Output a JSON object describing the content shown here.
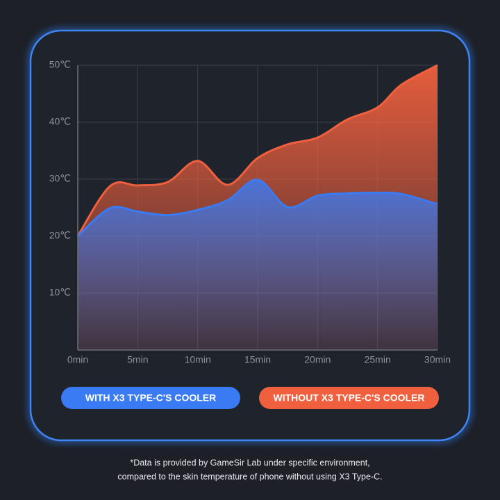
{
  "chart_data": {
    "type": "area",
    "x": [
      0,
      2.7,
      5,
      7.5,
      10,
      12.5,
      15,
      17.5,
      20,
      22.5,
      25,
      27,
      30
    ],
    "series": [
      {
        "name": "WITHOUT X3 TYPE-C'S COOLER",
        "color": "#f0603e",
        "values": [
          20,
          28.8,
          28.9,
          29.5,
          33.2,
          29.0,
          33.7,
          36.1,
          37.3,
          40.5,
          42.6,
          46.6,
          50
        ]
      },
      {
        "name": "WITH X3 TYPE-C'S COOLER",
        "color": "#3a7af2",
        "values": [
          20,
          24.9,
          24.3,
          23.7,
          24.6,
          26.3,
          29.9,
          25.1,
          27.1,
          27.5,
          27.6,
          27.4,
          25.6
        ]
      }
    ],
    "xlim": [
      0,
      30
    ],
    "xticks": [
      {
        "value": 0,
        "label": "0min"
      },
      {
        "value": 5,
        "label": "5min"
      },
      {
        "value": 10,
        "label": "10min"
      },
      {
        "value": 15,
        "label": "15min"
      },
      {
        "value": 20,
        "label": "20min"
      },
      {
        "value": 25,
        "label": "25min"
      },
      {
        "value": 30,
        "label": "30min"
      }
    ],
    "ylim": [
      0,
      50
    ],
    "yticks": [
      {
        "value": 10,
        "label": "10℃"
      },
      {
        "value": 20,
        "label": "20℃"
      },
      {
        "value": 30,
        "label": "30℃"
      },
      {
        "value": 40,
        "label": "40℃"
      },
      {
        "value": 50,
        "label": "50℃"
      }
    ],
    "grid": true,
    "note": [
      "*Data is provided by GameSir Lab under specific environment,",
      "compared to the skin temperature of phone without using X3 Type-C."
    ]
  }
}
